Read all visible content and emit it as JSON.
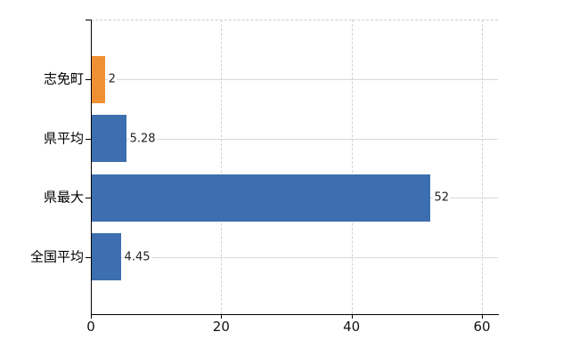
{
  "chart_data": {
    "type": "bar",
    "orientation": "horizontal",
    "title": "",
    "xlabel": "",
    "ylabel": "",
    "categories": [
      "志免町",
      "県平均",
      "県最大",
      "全国平均"
    ],
    "values": [
      2,
      5.28,
      52,
      4.45
    ],
    "value_labels": [
      "2",
      "5.28",
      "52",
      "4.45"
    ],
    "bar_colors": [
      "#EE9033",
      "#3D6EAF",
      "#3D6EAF",
      "#3D6EAF"
    ],
    "xlim": [
      0,
      60
    ],
    "xticks": [
      0,
      20,
      40,
      60
    ],
    "xtick_labels": [
      "0",
      "20",
      "40",
      "60"
    ],
    "grid": {
      "vertical": "dashed",
      "horizontal": "solid",
      "top_border": "dashed"
    },
    "legend": "none",
    "colors": {
      "background": "#ffffff",
      "axis": "#000000",
      "grid_vertical": "#d7ced4",
      "grid_horizontal": "#d4dbd1",
      "top_border": "#cfc8cd",
      "category_text": "#000000",
      "tick_text": "#111111",
      "value_text": "#222222",
      "bar_blue": "#3D6EAF",
      "bar_orange": "#EE9033"
    }
  }
}
